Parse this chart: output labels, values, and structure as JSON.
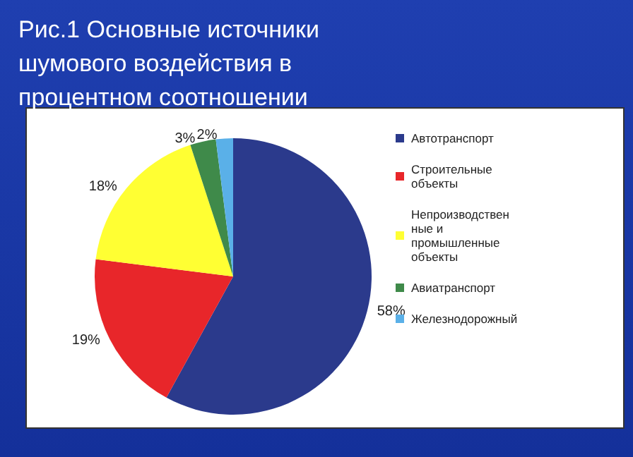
{
  "chart_data": {
    "type": "pie",
    "title": "Рис.1 Основные источники шумового воздействия в процентном соотношении",
    "categories": [
      "Автотранспорт",
      "Строительные объекты",
      "Непроизводственные и промышленные объекты",
      "Авиатранспорт",
      "Железнодорожный"
    ],
    "values": [
      58,
      19,
      18,
      3,
      2
    ],
    "colors": [
      "#2b3a8c",
      "#e8262a",
      "#ffff33",
      "#3f8a4a",
      "#5ab0e8"
    ],
    "value_labels": [
      "58%",
      "19%",
      "18%",
      "3%",
      "2%"
    ],
    "legend": "right"
  }
}
